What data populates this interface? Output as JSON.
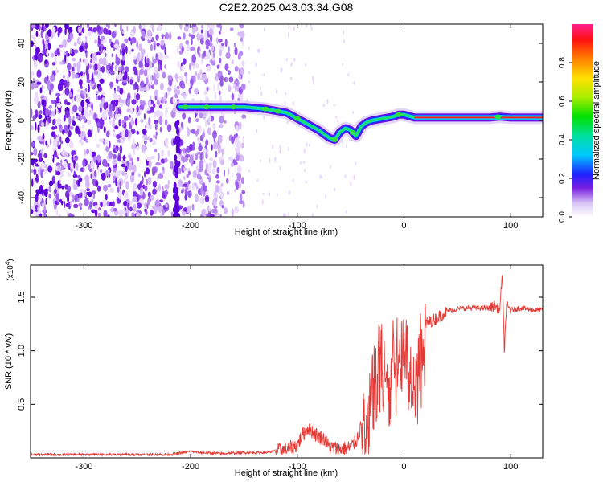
{
  "page": {
    "title": "C2E2.2025.043.03.34.G08"
  },
  "colorbar": {
    "label": "Normalized spectral amplitude",
    "range": [
      0.0,
      1.0
    ],
    "ticks": [
      0.0,
      0.2,
      0.4,
      0.6,
      0.8
    ],
    "tick_labels": [
      "0.0",
      "0.2",
      "0.4",
      "0.6",
      "0.8"
    ]
  },
  "chart_data": [
    {
      "type": "heatmap",
      "name": "spectrogram",
      "title": "",
      "xlabel": "Height of straight line (km)",
      "ylabel": "Frequency (Hz)",
      "xlim": [
        -350,
        130
      ],
      "ylim": [
        -50,
        50
      ],
      "xticks": [
        -300,
        -200,
        -100,
        0,
        100
      ],
      "xtick_labels": [
        "-300",
        "-200",
        "-100",
        "0",
        "100"
      ],
      "yticks": [
        -40,
        -20,
        0,
        20,
        40
      ],
      "ytick_labels": [
        "-40",
        "-20",
        "0",
        "20",
        "40"
      ],
      "noise_region_x": [
        -350,
        -150
      ],
      "ridge": {
        "x": [
          -210,
          -190,
          -170,
          -150,
          -140,
          -130,
          -120,
          -110,
          -100,
          -90,
          -80,
          -75,
          -70,
          -65,
          -60,
          -55,
          -50,
          -45,
          -40,
          -35,
          -30,
          -20,
          -10,
          -5,
          0,
          10,
          20,
          40,
          60,
          80,
          90,
          100,
          130
        ],
        "y": [
          7,
          7,
          7,
          7,
          6.5,
          6,
          5,
          4,
          1,
          -2,
          -5,
          -7,
          -9,
          -10,
          -6,
          -4,
          -5,
          -8,
          -3,
          -1,
          0,
          1,
          2,
          3,
          3,
          1.5,
          1.5,
          1.5,
          1.5,
          1.5,
          2,
          1.5,
          1.5
        ]
      }
    },
    {
      "type": "line",
      "name": "snr",
      "title": "",
      "xlabel": "Height of straight line (km)",
      "ylabel": "SNR (10 * v/v)",
      "y_multiplier_label": "(x10",
      "y_multiplier_exp": "4",
      "y_multiplier_close": ")",
      "xlim": [
        -350,
        130
      ],
      "ylim": [
        0,
        1.8
      ],
      "xticks": [
        -300,
        -200,
        -100,
        0,
        100
      ],
      "xtick_labels": [
        "-300",
        "-200",
        "-100",
        "0",
        "100"
      ],
      "yticks": [
        0.5,
        1.0,
        1.5
      ],
      "ytick_labels": [
        "0.5",
        "1.0",
        "1.5"
      ],
      "color": "#e53935",
      "series": [
        {
          "x": [
            -350,
            -300,
            -250,
            -220,
            -200,
            -190,
            -170,
            -150,
            -130,
            -110,
            -100,
            -95,
            -90,
            -80,
            -75,
            -70,
            -60,
            -50,
            -45,
            -40,
            -35,
            -30,
            -25,
            -20,
            -15,
            -10,
            -5,
            0,
            5,
            10,
            15,
            20,
            30,
            40,
            50,
            60,
            70,
            80,
            85,
            90,
            92,
            94,
            96,
            100,
            110,
            120,
            130
          ],
          "y": [
            0.03,
            0.03,
            0.03,
            0.03,
            0.06,
            0.05,
            0.04,
            0.05,
            0.05,
            0.08,
            0.12,
            0.22,
            0.28,
            0.2,
            0.18,
            0.1,
            0.08,
            0.1,
            0.15,
            0.3,
            0.5,
            0.75,
            0.95,
            1.05,
            0.85,
            1.0,
            0.95,
            1.15,
            0.85,
            0.75,
            1.0,
            1.25,
            1.3,
            1.37,
            1.39,
            1.4,
            1.4,
            1.4,
            1.42,
            1.38,
            1.75,
            1.0,
            1.42,
            1.38,
            1.4,
            1.38,
            1.38
          ]
        }
      ]
    }
  ]
}
